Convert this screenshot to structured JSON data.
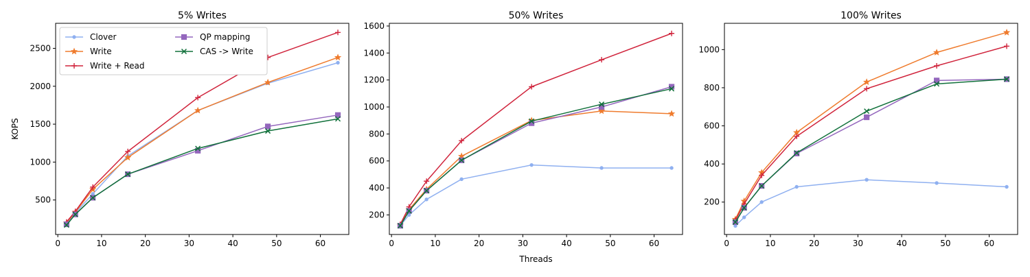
{
  "figure": {
    "legend_location": "upper-left",
    "legend_panel": 0
  },
  "chart_data": [
    {
      "type": "line",
      "title": "5% Writes",
      "xlabel": "",
      "ylabel": "KOPS",
      "xlim": [
        -0.5,
        66.5
      ],
      "ylim": [
        45,
        2830
      ],
      "xticks": [
        0,
        10,
        20,
        30,
        40,
        50,
        60
      ],
      "yticks": [
        500,
        1000,
        1500,
        2000,
        2500
      ],
      "grid": false,
      "x": [
        2,
        4,
        8,
        16,
        32,
        48,
        64
      ],
      "series": [
        {
          "name": "Clover",
          "color": "#8fb0f0",
          "marker": "dot",
          "values": [
            190,
            330,
            580,
            1080,
            1680,
            2040,
            2310
          ]
        },
        {
          "name": "Write",
          "color": "#ef7b2d",
          "marker": "star",
          "values": [
            200,
            340,
            640,
            1060,
            1680,
            2050,
            2380
          ]
        },
        {
          "name": "Write + Read",
          "color": "#d0243c",
          "marker": "plus",
          "values": [
            210,
            350,
            670,
            1140,
            1850,
            2380,
            2710
          ]
        },
        {
          "name": "QP mapping",
          "color": "#9467bd",
          "marker": "square",
          "values": [
            180,
            310,
            530,
            840,
            1150,
            1470,
            1620
          ]
        },
        {
          "name": "CAS -> Write",
          "color": "#10703a",
          "marker": "x",
          "values": [
            170,
            310,
            530,
            840,
            1180,
            1410,
            1570
          ]
        }
      ]
    },
    {
      "type": "line",
      "title": "50% Writes",
      "xlabel": "Threads",
      "ylabel": "",
      "xlim": [
        -0.5,
        66.5
      ],
      "ylim": [
        55,
        1620
      ],
      "xticks": [
        0,
        10,
        20,
        30,
        40,
        50,
        60
      ],
      "yticks": [
        200,
        400,
        600,
        800,
        1000,
        1200,
        1400,
        1600
      ],
      "grid": false,
      "x": [
        2,
        4,
        8,
        16,
        32,
        48,
        64
      ],
      "series": [
        {
          "name": "Clover",
          "color": "#8fb0f0",
          "marker": "dot",
          "values": [
            120,
            200,
            315,
            465,
            570,
            548,
            548
          ]
        },
        {
          "name": "Write",
          "color": "#ef7b2d",
          "marker": "star",
          "values": [
            125,
            240,
            390,
            635,
            900,
            970,
            950
          ]
        },
        {
          "name": "Write + Read",
          "color": "#d0243c",
          "marker": "plus",
          "values": [
            130,
            260,
            450,
            750,
            1150,
            1350,
            1545
          ]
        },
        {
          "name": "QP mapping",
          "color": "#9467bd",
          "marker": "square",
          "values": [
            120,
            230,
            380,
            605,
            880,
            1000,
            1150
          ]
        },
        {
          "name": "CAS -> Write",
          "color": "#10703a",
          "marker": "x",
          "values": [
            120,
            230,
            380,
            605,
            895,
            1020,
            1135
          ]
        }
      ]
    },
    {
      "type": "line",
      "title": "100% Writes",
      "xlabel": "",
      "ylabel": "",
      "xlim": [
        -0.5,
        66.5
      ],
      "ylim": [
        30,
        1138
      ],
      "xticks": [
        0,
        10,
        20,
        30,
        40,
        50,
        60
      ],
      "yticks": [
        200,
        400,
        600,
        800,
        1000
      ],
      "grid": false,
      "x": [
        2,
        4,
        8,
        16,
        32,
        48,
        64
      ],
      "series": [
        {
          "name": "Clover",
          "color": "#8fb0f0",
          "marker": "dot",
          "values": [
            75,
            120,
            200,
            280,
            317,
            300,
            280
          ]
        },
        {
          "name": "Write",
          "color": "#ef7b2d",
          "marker": "star",
          "values": [
            110,
            205,
            355,
            565,
            830,
            985,
            1090
          ]
        },
        {
          "name": "Write + Read",
          "color": "#d0243c",
          "marker": "plus",
          "values": [
            105,
            190,
            340,
            545,
            795,
            915,
            1018
          ]
        },
        {
          "name": "QP mapping",
          "color": "#9467bd",
          "marker": "square",
          "values": [
            95,
            170,
            285,
            455,
            645,
            838,
            845
          ]
        },
        {
          "name": "CAS -> Write",
          "color": "#10703a",
          "marker": "x",
          "values": [
            95,
            170,
            285,
            458,
            677,
            820,
            845
          ]
        }
      ]
    }
  ]
}
